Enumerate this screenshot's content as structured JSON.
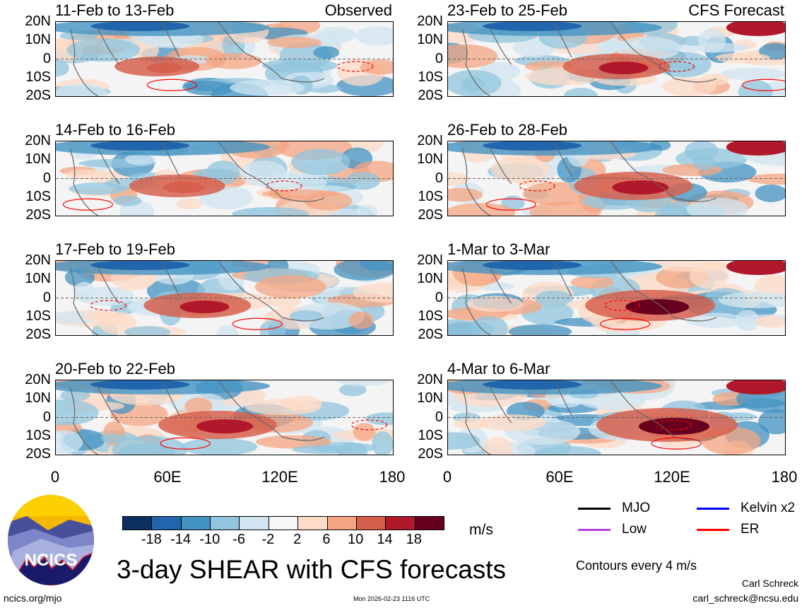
{
  "chart_data": {
    "type": "heatmap",
    "title": "3-day SHEAR with CFS forecasts",
    "units": "m/s",
    "y_ticks": [
      "20N",
      "10N",
      "0",
      "10S",
      "20S"
    ],
    "x_ticks": [
      "0",
      "60E",
      "120E",
      "180"
    ],
    "xlim": [
      0,
      180
    ],
    "ylim": [
      -20,
      20
    ],
    "panels": [
      {
        "title": "11-Feb to 13-Feb",
        "tag": "Observed",
        "column": "left"
      },
      {
        "title": "14-Feb to 16-Feb",
        "tag": "",
        "column": "left"
      },
      {
        "title": "17-Feb to 19-Feb",
        "tag": "",
        "column": "left"
      },
      {
        "title": "20-Feb to 22-Feb",
        "tag": "",
        "column": "left"
      },
      {
        "title": "23-Feb to 25-Feb",
        "tag": "CFS Forecast",
        "column": "right"
      },
      {
        "title": "26-Feb to 28-Feb",
        "tag": "",
        "column": "right"
      },
      {
        "title": "1-Mar to 3-Mar",
        "tag": "",
        "column": "right"
      },
      {
        "title": "4-Mar to 6-Mar",
        "tag": "",
        "column": "right"
      }
    ],
    "colorbar": {
      "labels": [
        "-18",
        "-14",
        "-10",
        "-6",
        "-2",
        "2",
        "6",
        "10",
        "14",
        "18"
      ],
      "colors": [
        "#0b2f60",
        "#2166ac",
        "#4393c3",
        "#92c5de",
        "#d1e5f0",
        "#f7f7f7",
        "#fddbc7",
        "#f4a582",
        "#d6604d",
        "#b2182b",
        "#67001f"
      ]
    },
    "legend": [
      {
        "label": "MJO",
        "color": "#000000"
      },
      {
        "label": "Kelvin x2",
        "color": "#0000ff"
      },
      {
        "label": "Low",
        "color": "#b040e0"
      },
      {
        "label": "ER",
        "color": "#ff0000"
      }
    ],
    "contour_note": "Contours every 4 m/s"
  },
  "footer": {
    "logo": "NCICS",
    "url": "ncics.org/mjo",
    "timestamp": "Mon 2026-02-23 1116 UTC",
    "author": "Carl Schreck",
    "email": "carl_schreck@ncsu.edu"
  }
}
